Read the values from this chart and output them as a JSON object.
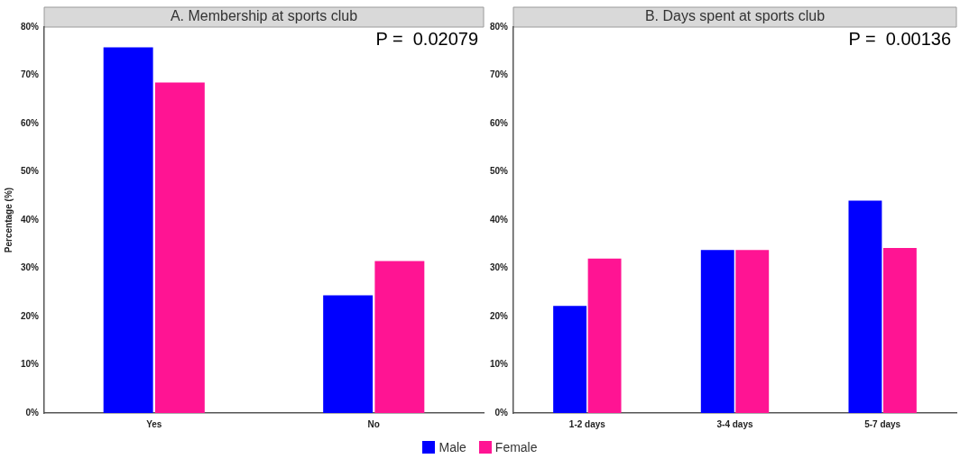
{
  "chart_data": [
    {
      "type": "bar",
      "title": "A. Membership at sports club",
      "ylabel": "Percentage (%)",
      "categories": [
        "Yes",
        "No"
      ],
      "series": [
        {
          "name": "Male",
          "color": "#0000ff",
          "values": [
            75.8,
            24.4
          ]
        },
        {
          "name": "Female",
          "color": "#ff1493",
          "values": [
            68.5,
            31.5
          ]
        }
      ],
      "ylim": [
        0,
        80
      ],
      "yticks": [
        {
          "value": 0,
          "label": "0%"
        },
        {
          "value": 10,
          "label": "10%"
        },
        {
          "value": 20,
          "label": "20%"
        },
        {
          "value": 30,
          "label": "30%"
        },
        {
          "value": 40,
          "label": "40%"
        },
        {
          "value": 50,
          "label": "50%"
        },
        {
          "value": 60,
          "label": "60%"
        },
        {
          "value": 70,
          "label": "70%"
        },
        {
          "value": 80,
          "label": "80%"
        }
      ],
      "annotations": [
        "P =  0.02079"
      ],
      "grid": false,
      "legend": "bottom"
    },
    {
      "type": "bar",
      "title": "B. Days spent at sports club",
      "categories": [
        "1-2 days",
        "3-4 days",
        "5-7 days"
      ],
      "series": [
        {
          "color": "#0000ff",
          "values": [
            22.2,
            33.8,
            44
          ]
        },
        {
          "color": "#ff1493",
          "values": [
            32,
            33.8,
            34.2
          ]
        }
      ],
      "ylim": [
        0,
        80
      ],
      "yticks": [
        {
          "value": 0,
          "label": "0%"
        },
        {
          "value": 10,
          "label": "10%"
        },
        {
          "value": 20,
          "label": "20%"
        },
        {
          "value": 30,
          "label": "30%"
        },
        {
          "value": 40,
          "label": "40%"
        },
        {
          "value": 50,
          "label": "50%"
        },
        {
          "value": 60,
          "label": "60%"
        },
        {
          "value": 70,
          "label": "70%"
        },
        {
          "value": 80,
          "label": "80%"
        }
      ],
      "annotations": [
        "P =  0.00136"
      ],
      "grid": false
    }
  ]
}
